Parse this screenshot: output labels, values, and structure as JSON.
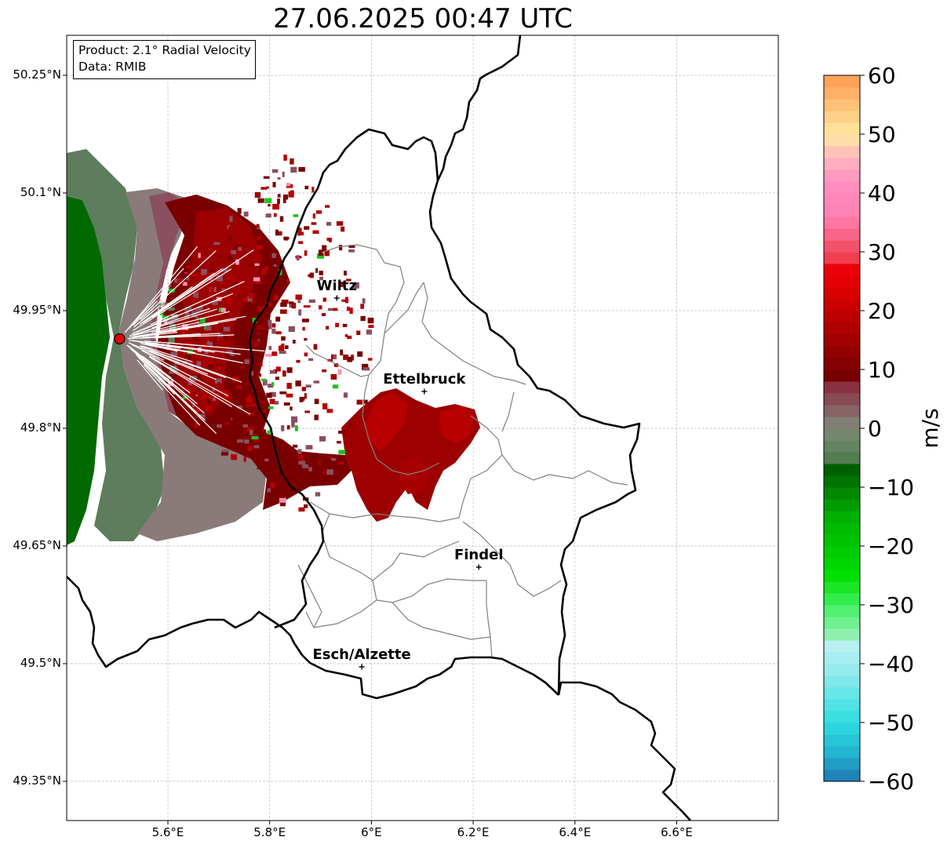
{
  "title": "27.06.2025 00:47 UTC",
  "info": {
    "product": "Product: 2.1° Radial Velocity",
    "data": "Data: RMIB"
  },
  "lat_ticks": [
    "50.25°N",
    "50.1°N",
    "49.95°N",
    "49.8°N",
    "49.65°N",
    "49.5°N",
    "49.35°N"
  ],
  "lon_ticks": [
    "5.6°E",
    "5.8°E",
    "6°E",
    "6.2°E",
    "6.4°E",
    "6.6°E"
  ],
  "cities": [
    {
      "name": "Wiltz",
      "lon": 5.932,
      "lat": 49.966
    },
    {
      "name": "Ettelbruck",
      "lon": 6.104,
      "lat": 49.847
    },
    {
      "name": "Findel",
      "lon": 6.211,
      "lat": 49.623
    },
    {
      "name": "Esch/Alzette",
      "lon": 5.981,
      "lat": 49.496
    }
  ],
  "radar_site": {
    "lon": 5.505,
    "lat": 49.914,
    "color": "#e8000b"
  },
  "colorbar": {
    "label": "m/s",
    "min": -60,
    "max": 60,
    "ticks": [
      "60",
      "50",
      "40",
      "30",
      "20",
      "10",
      "0",
      "−10",
      "−20",
      "−30",
      "−40",
      "−50",
      "−60"
    ],
    "stops": [
      {
        "v": -60,
        "color": "#1f77b4"
      },
      {
        "v": -55,
        "color": "#22b5d0"
      },
      {
        "v": -50,
        "color": "#2edde0"
      },
      {
        "v": -40,
        "color": "#a0ecee"
      },
      {
        "v": -36,
        "color": "#c0f0f0"
      },
      {
        "v": -35,
        "color": "#90f0b0"
      },
      {
        "v": -30,
        "color": "#40f060"
      },
      {
        "v": -25,
        "color": "#00e000"
      },
      {
        "v": -15,
        "color": "#00b000"
      },
      {
        "v": -7,
        "color": "#006000"
      },
      {
        "v": -6,
        "color": "#4a7a4a"
      },
      {
        "v": 0,
        "color": "#7d8b75"
      },
      {
        "v": 2,
        "color": "#867070"
      },
      {
        "v": 7,
        "color": "#8a3040"
      },
      {
        "v": 8,
        "color": "#700000"
      },
      {
        "v": 15,
        "color": "#a00000"
      },
      {
        "v": 24,
        "color": "#e00000"
      },
      {
        "v": 28,
        "color": "#f00010"
      },
      {
        "v": 29,
        "color": "#f04050"
      },
      {
        "v": 36,
        "color": "#ff80b0"
      },
      {
        "v": 42,
        "color": "#ff90c0"
      },
      {
        "v": 46,
        "color": "#ffb6c0"
      },
      {
        "v": 50,
        "color": "#ffe8a0"
      },
      {
        "v": 56,
        "color": "#ffb870"
      },
      {
        "v": 60,
        "color": "#ff9a50"
      }
    ]
  },
  "velocity_colors": {
    "inbound_dark": "#006a00",
    "inbound": "#5e7d5c",
    "zero": "#8a7a7a",
    "outbound_weak": "#8b5060",
    "outbound": "#7a0000",
    "outbound_mid": "#9c0000",
    "outbound_strong": "#b80000"
  }
}
